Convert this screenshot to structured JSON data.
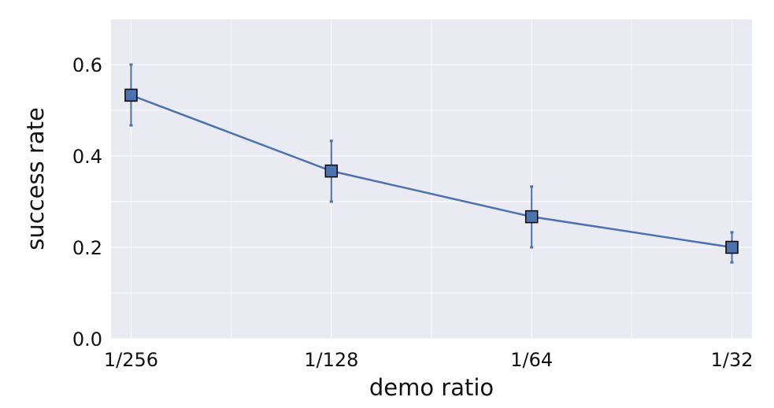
{
  "chart_data": {
    "type": "line",
    "title": "",
    "xlabel": "demo ratio",
    "ylabel": "success rate",
    "categories": [
      "1/256",
      "1/128",
      "1/64",
      "1/32"
    ],
    "series": [
      {
        "values": [
          0.533,
          0.367,
          0.267,
          0.2
        ],
        "error_low": [
          0.467,
          0.3,
          0.2,
          0.167
        ],
        "error_high": [
          0.6,
          0.433,
          0.333,
          0.233
        ],
        "color": "#4C72B0",
        "marker": "square"
      }
    ],
    "ylim": [
      0,
      0.7
    ],
    "yticks": [
      "0.0",
      "0.2",
      "0.4",
      "0.6"
    ],
    "grid": true,
    "background": "#EAEAF2"
  }
}
